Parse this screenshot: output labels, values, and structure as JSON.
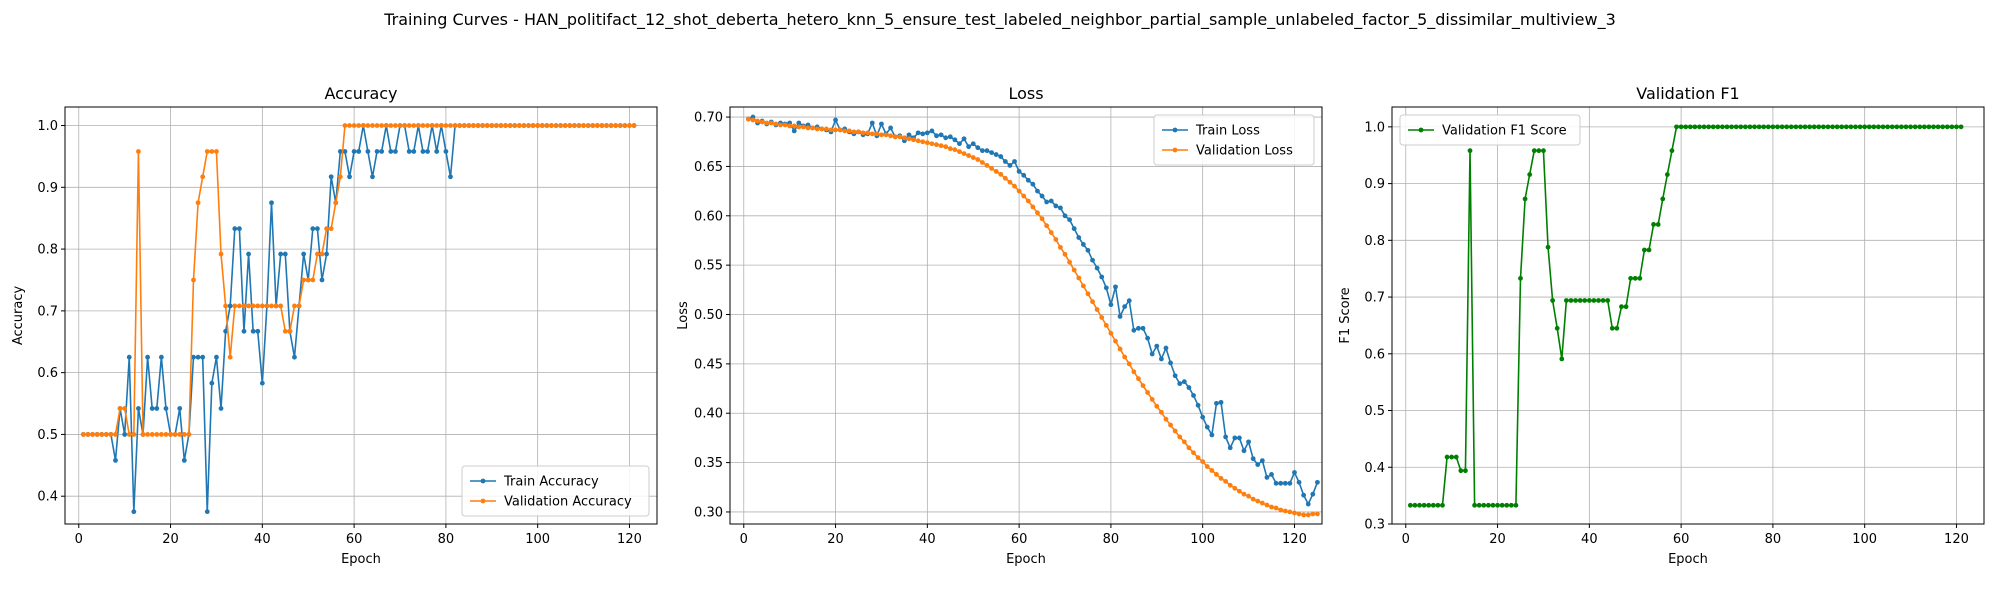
{
  "figure": {
    "suptitle": "Training Curves - HAN_politifact_12_shot_deberta_hetero_knn_5_ensure_test_labeled_neighbor_partial_sample_unlabeled_factor_5_dissimilar_multiview_3"
  },
  "colors": {
    "train": "#1f77b4",
    "validation": "#ff7f0e",
    "f1": "#008000",
    "grid": "#b0b0b0"
  },
  "chart_data": [
    {
      "type": "line",
      "title": "Accuracy",
      "xlabel": "Epoch",
      "ylabel": "Accuracy",
      "xlim": [
        -3,
        126
      ],
      "ylim": [
        0.355,
        1.03
      ],
      "xticks": [
        0,
        20,
        40,
        60,
        80,
        100,
        120
      ],
      "yticks": [
        0.4,
        0.5,
        0.6,
        0.7,
        0.8,
        0.9,
        1.0
      ],
      "ytick_labels": [
        "0.4",
        "0.5",
        "0.6",
        "0.7",
        "0.8",
        "0.9",
        "1.0"
      ],
      "grid": true,
      "legend_position": "lower-right",
      "x_start": 1,
      "series": [
        {
          "name": "Train Accuracy",
          "color": "#1f77b4",
          "values": [
            0.5,
            0.5,
            0.5,
            0.5,
            0.5,
            0.5,
            0.5,
            0.458,
            0.542,
            0.5,
            0.625,
            0.375,
            0.542,
            0.5,
            0.625,
            0.542,
            0.542,
            0.625,
            0.542,
            0.5,
            0.5,
            0.542,
            0.458,
            0.5,
            0.625,
            0.625,
            0.625,
            0.375,
            0.583,
            0.625,
            0.542,
            0.667,
            0.708,
            0.833,
            0.833,
            0.667,
            0.792,
            0.667,
            0.667,
            0.583,
            0.708,
            0.875,
            0.708,
            0.792,
            0.792,
            0.667,
            0.625,
            0.708,
            0.792,
            0.75,
            0.833,
            0.833,
            0.75,
            0.792,
            0.917,
            0.875,
            0.958,
            0.958,
            0.917,
            0.958,
            0.958,
            1.0,
            0.958,
            0.917,
            0.958,
            0.958,
            1.0,
            0.958,
            0.958,
            1.0,
            1.0,
            0.958,
            0.958,
            1.0,
            0.958,
            0.958,
            1.0,
            0.958,
            1.0,
            0.958,
            0.917,
            1.0,
            1.0,
            1.0,
            1.0,
            1.0,
            1.0,
            1.0,
            1.0,
            1.0,
            1.0,
            1.0,
            1.0,
            1.0,
            1.0,
            1.0,
            1.0,
            1.0,
            1.0,
            1.0,
            1.0,
            1.0,
            1.0,
            1.0,
            1.0,
            1.0,
            1.0,
            1.0,
            1.0,
            1.0,
            1.0,
            1.0,
            1.0,
            1.0,
            1.0,
            1.0,
            1.0,
            1.0,
            1.0,
            1.0,
            1.0
          ]
        },
        {
          "name": "Validation Accuracy",
          "color": "#ff7f0e",
          "values": [
            0.5,
            0.5,
            0.5,
            0.5,
            0.5,
            0.5,
            0.5,
            0.5,
            0.542,
            0.542,
            0.5,
            0.5,
            0.958,
            0.5,
            0.5,
            0.5,
            0.5,
            0.5,
            0.5,
            0.5,
            0.5,
            0.5,
            0.5,
            0.5,
            0.75,
            0.875,
            0.917,
            0.958,
            0.958,
            0.958,
            0.792,
            0.708,
            0.625,
            0.708,
            0.708,
            0.708,
            0.708,
            0.708,
            0.708,
            0.708,
            0.708,
            0.708,
            0.708,
            0.708,
            0.667,
            0.667,
            0.708,
            0.708,
            0.75,
            0.75,
            0.75,
            0.792,
            0.792,
            0.833,
            0.833,
            0.875,
            0.917,
            1.0,
            1.0,
            1.0,
            1.0,
            1.0,
            1.0,
            1.0,
            1.0,
            1.0,
            1.0,
            1.0,
            1.0,
            1.0,
            1.0,
            1.0,
            1.0,
            1.0,
            1.0,
            1.0,
            1.0,
            1.0,
            1.0,
            1.0,
            1.0,
            1.0,
            1.0,
            1.0,
            1.0,
            1.0,
            1.0,
            1.0,
            1.0,
            1.0,
            1.0,
            1.0,
            1.0,
            1.0,
            1.0,
            1.0,
            1.0,
            1.0,
            1.0,
            1.0,
            1.0,
            1.0,
            1.0,
            1.0,
            1.0,
            1.0,
            1.0,
            1.0,
            1.0,
            1.0,
            1.0,
            1.0,
            1.0,
            1.0,
            1.0,
            1.0,
            1.0,
            1.0,
            1.0,
            1.0,
            1.0
          ]
        }
      ]
    },
    {
      "type": "line",
      "title": "Loss",
      "xlabel": "Epoch",
      "ylabel": "Loss",
      "xlim": [
        -3,
        126
      ],
      "ylim": [
        0.2878,
        0.7102
      ],
      "xticks": [
        0,
        20,
        40,
        60,
        80,
        100,
        120
      ],
      "yticks": [
        0.3,
        0.35,
        0.4,
        0.45,
        0.5,
        0.55,
        0.6,
        0.65,
        0.7
      ],
      "ytick_labels": [
        "0.30",
        "0.35",
        "0.40",
        "0.45",
        "0.50",
        "0.55",
        "0.60",
        "0.65",
        "0.70"
      ],
      "grid": true,
      "legend_position": "upper-right",
      "x_start": 1,
      "series": [
        {
          "name": "Train Loss",
          "color": "#1f77b4",
          "values": [
            0.698,
            0.7,
            0.694,
            0.696,
            0.693,
            0.695,
            0.692,
            0.694,
            0.693,
            0.694,
            0.686,
            0.694,
            0.691,
            0.692,
            0.689,
            0.69,
            0.688,
            0.687,
            0.685,
            0.697,
            0.687,
            0.688,
            0.685,
            0.683,
            0.685,
            0.682,
            0.683,
            0.694,
            0.681,
            0.693,
            0.683,
            0.689,
            0.68,
            0.681,
            0.676,
            0.682,
            0.679,
            0.684,
            0.683,
            0.684,
            0.686,
            0.681,
            0.682,
            0.679,
            0.68,
            0.677,
            0.673,
            0.678,
            0.67,
            0.673,
            0.669,
            0.666,
            0.666,
            0.664,
            0.662,
            0.66,
            0.655,
            0.651,
            0.655,
            0.645,
            0.641,
            0.636,
            0.632,
            0.625,
            0.62,
            0.614,
            0.615,
            0.61,
            0.608,
            0.6,
            0.596,
            0.587,
            0.578,
            0.571,
            0.565,
            0.555,
            0.547,
            0.538,
            0.527,
            0.51,
            0.528,
            0.498,
            0.508,
            0.514,
            0.484,
            0.486,
            0.486,
            0.476,
            0.46,
            0.468,
            0.455,
            0.466,
            0.451,
            0.438,
            0.43,
            0.432,
            0.426,
            0.418,
            0.408,
            0.396,
            0.386,
            0.378,
            0.41,
            0.411,
            0.376,
            0.365,
            0.375,
            0.375,
            0.362,
            0.371,
            0.354,
            0.348,
            0.352,
            0.335,
            0.338,
            0.329,
            0.329,
            0.329,
            0.329,
            0.34,
            0.33,
            0.317,
            0.308,
            0.318,
            0.33
          ]
        },
        {
          "name": "Validation Loss",
          "color": "#ff7f0e",
          "values": [
            0.698,
            0.697,
            0.696,
            0.695,
            0.694,
            0.694,
            0.693,
            0.692,
            0.692,
            0.691,
            0.691,
            0.69,
            0.69,
            0.689,
            0.689,
            0.688,
            0.688,
            0.688,
            0.687,
            0.687,
            0.687,
            0.686,
            0.686,
            0.685,
            0.685,
            0.684,
            0.684,
            0.683,
            0.683,
            0.682,
            0.682,
            0.681,
            0.68,
            0.68,
            0.679,
            0.678,
            0.677,
            0.676,
            0.675,
            0.674,
            0.673,
            0.672,
            0.671,
            0.67,
            0.668,
            0.667,
            0.665,
            0.663,
            0.661,
            0.659,
            0.657,
            0.654,
            0.651,
            0.648,
            0.645,
            0.642,
            0.638,
            0.634,
            0.63,
            0.625,
            0.62,
            0.615,
            0.609,
            0.603,
            0.597,
            0.59,
            0.583,
            0.576,
            0.568,
            0.561,
            0.553,
            0.545,
            0.537,
            0.529,
            0.521,
            0.513,
            0.505,
            0.497,
            0.489,
            0.481,
            0.473,
            0.465,
            0.457,
            0.45,
            0.442,
            0.435,
            0.428,
            0.421,
            0.414,
            0.407,
            0.401,
            0.394,
            0.388,
            0.382,
            0.376,
            0.371,
            0.365,
            0.36,
            0.355,
            0.351,
            0.346,
            0.342,
            0.338,
            0.334,
            0.331,
            0.327,
            0.324,
            0.321,
            0.318,
            0.316,
            0.313,
            0.311,
            0.309,
            0.307,
            0.305,
            0.304,
            0.302,
            0.301,
            0.3,
            0.299,
            0.298,
            0.297,
            0.297,
            0.298,
            0.298
          ]
        }
      ]
    },
    {
      "type": "line",
      "title": "Validation F1",
      "xlabel": "Epoch",
      "ylabel": "F1 Score",
      "xlim": [
        -3,
        126
      ],
      "ylim": [
        0.3,
        1.035
      ],
      "xticks": [
        0,
        20,
        40,
        60,
        80,
        100,
        120
      ],
      "yticks": [
        0.3,
        0.4,
        0.5,
        0.6,
        0.7,
        0.8,
        0.9,
        1.0
      ],
      "ytick_labels": [
        "0.3",
        "0.4",
        "0.5",
        "0.6",
        "0.7",
        "0.8",
        "0.9",
        "1.0"
      ],
      "grid": true,
      "legend_position": "upper-left",
      "x_start": 1,
      "series": [
        {
          "name": "Validation F1 Score",
          "color": "#008000",
          "values": [
            0.333,
            0.333,
            0.333,
            0.333,
            0.333,
            0.333,
            0.333,
            0.333,
            0.418,
            0.418,
            0.418,
            0.394,
            0.394,
            0.958,
            0.333,
            0.333,
            0.333,
            0.333,
            0.333,
            0.333,
            0.333,
            0.333,
            0.333,
            0.333,
            0.733,
            0.873,
            0.916,
            0.958,
            0.958,
            0.958,
            0.788,
            0.694,
            0.645,
            0.591,
            0.694,
            0.694,
            0.694,
            0.694,
            0.694,
            0.694,
            0.694,
            0.694,
            0.694,
            0.694,
            0.645,
            0.645,
            0.683,
            0.683,
            0.733,
            0.733,
            0.733,
            0.783,
            0.783,
            0.828,
            0.828,
            0.873,
            0.916,
            0.958,
            1.0,
            1.0,
            1.0,
            1.0,
            1.0,
            1.0,
            1.0,
            1.0,
            1.0,
            1.0,
            1.0,
            1.0,
            1.0,
            1.0,
            1.0,
            1.0,
            1.0,
            1.0,
            1.0,
            1.0,
            1.0,
            1.0,
            1.0,
            1.0,
            1.0,
            1.0,
            1.0,
            1.0,
            1.0,
            1.0,
            1.0,
            1.0,
            1.0,
            1.0,
            1.0,
            1.0,
            1.0,
            1.0,
            1.0,
            1.0,
            1.0,
            1.0,
            1.0,
            1.0,
            1.0,
            1.0,
            1.0,
            1.0,
            1.0,
            1.0,
            1.0,
            1.0,
            1.0,
            1.0,
            1.0,
            1.0,
            1.0,
            1.0,
            1.0,
            1.0,
            1.0,
            1.0,
            1.0
          ]
        }
      ]
    }
  ]
}
